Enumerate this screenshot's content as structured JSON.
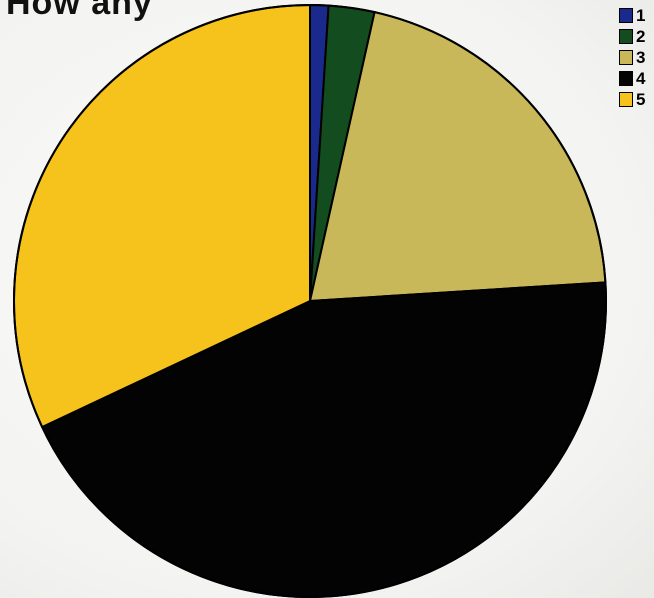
{
  "chart_data": {
    "type": "pie",
    "title": "How any",
    "categories": [
      "1",
      "2",
      "3",
      "4",
      "5"
    ],
    "values": [
      1.0,
      2.5,
      20.5,
      44.0,
      32.0
    ],
    "value_unit": "percent",
    "start_angle_deg": 0,
    "direction": "clockwise",
    "legend_position": "top-right",
    "colors": [
      "#1a2a8c",
      "#134d1f",
      "#c9b85a",
      "#030303",
      "#f6c21c"
    ]
  }
}
